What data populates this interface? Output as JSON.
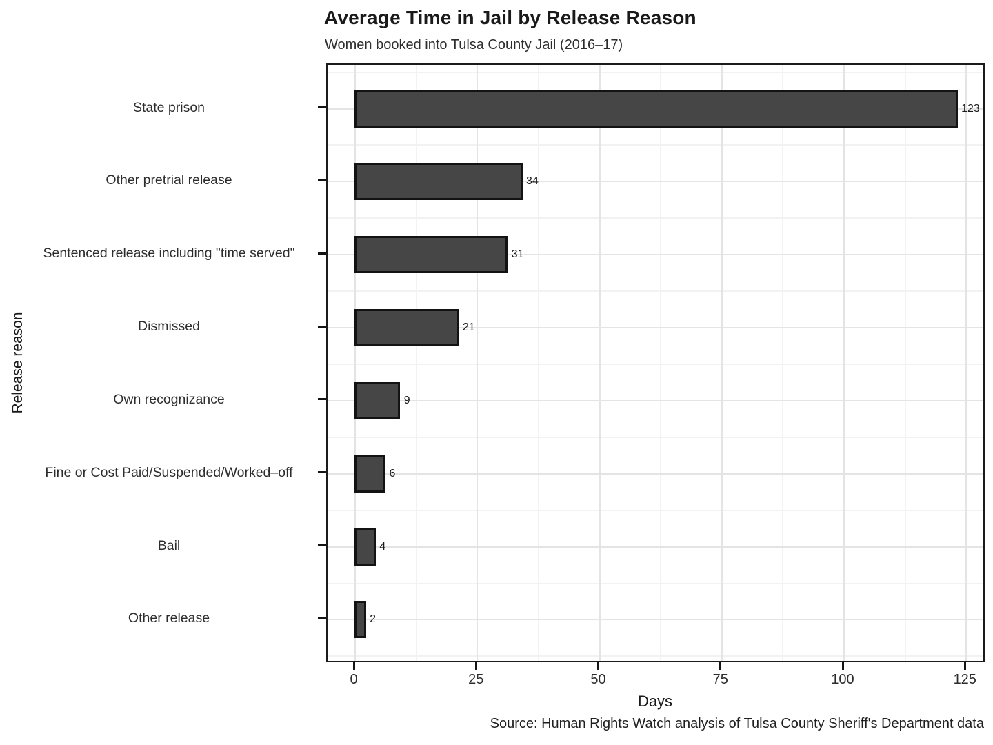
{
  "chart_data": {
    "type": "bar",
    "orientation": "horizontal",
    "title": "Average Time in Jail by Release Reason",
    "subtitle": "Women booked into Tulsa County Jail (2016–17)",
    "xlabel": "Days",
    "ylabel": "Release reason",
    "caption": "Source: Human Rights Watch analysis of Tulsa County Sheriff's Department data",
    "categories": [
      "State prison",
      "Other pretrial release",
      "Sentenced release including \"time served\"",
      "Dismissed",
      "Own recognizance",
      "Fine or Cost Paid/Suspended/Worked–off",
      "Bail",
      "Other release"
    ],
    "values": [
      123,
      34,
      31,
      21,
      9,
      6,
      4,
      2
    ],
    "x_ticks": [
      0,
      25,
      50,
      75,
      100,
      125
    ],
    "x_minor_ticks": [
      12.5,
      37.5,
      62.5,
      87.5,
      112.5
    ],
    "xlim": [
      0,
      125
    ],
    "grid": true,
    "legend": "none",
    "colors": {
      "bar_fill": "#464646",
      "bar_border": "#131313",
      "grid_major": "#e4e4e4",
      "grid_minor": "#f2f2f2",
      "panel_border": "#1b1b1b",
      "text": "#2d2d2d"
    }
  }
}
